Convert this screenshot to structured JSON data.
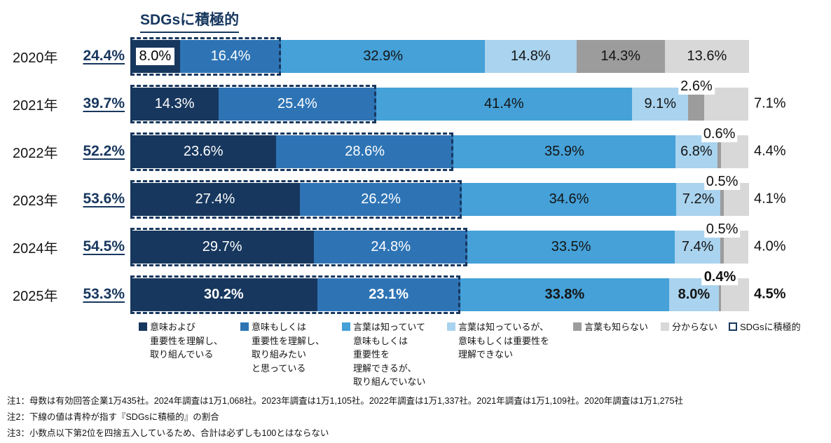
{
  "title": "SDGsに積極的",
  "accent_color": "#17375e",
  "chart_data": {
    "type": "bar",
    "stacked": true,
    "orientation": "horizontal",
    "unit": "%",
    "xlim": [
      0,
      100
    ],
    "categories": [
      "2020年",
      "2021年",
      "2022年",
      "2023年",
      "2024年",
      "2025年"
    ],
    "active_totals": [
      "24.4%",
      "39.7%",
      "52.2%",
      "53.6%",
      "54.5%",
      "53.3%"
    ],
    "annotation_box_label": "SDGsに積極的",
    "annotation_box_color": "#17375e",
    "series": [
      {
        "name": "意味および重要性を理解し、取り組んでいる",
        "color": "#17375e",
        "values": [
          8.0,
          14.3,
          23.6,
          27.4,
          29.7,
          30.2
        ]
      },
      {
        "name": "意味もしくは重要性を理解し、取り組みたいと思っている",
        "color": "#2e74b5",
        "values": [
          16.4,
          25.4,
          28.6,
          26.2,
          24.8,
          23.1
        ]
      },
      {
        "name": "言葉は知っていて意味もしくは重要性を理解できるが、取り組んでいない",
        "color": "#45a1d8",
        "values": [
          32.9,
          41.4,
          35.9,
          34.6,
          33.5,
          33.8
        ]
      },
      {
        "name": "言葉は知っているが、意味もしくは重要性を理解できない",
        "color": "#a9d3ee",
        "values": [
          14.8,
          9.1,
          6.8,
          7.2,
          7.4,
          8.0
        ]
      },
      {
        "name": "言葉も知らない",
        "color": "#9c9c9c",
        "values": [
          14.3,
          2.6,
          0.6,
          0.5,
          0.5,
          0.4
        ]
      },
      {
        "name": "分からない",
        "color": "#d8d8d8",
        "values": [
          13.6,
          7.1,
          4.4,
          4.1,
          4.0,
          4.5
        ]
      }
    ]
  },
  "legend": {
    "items": [
      {
        "swatch": "fill",
        "color": "#17375e",
        "label_lines": [
          "意味および",
          "重要性を理解し、",
          "取り組んでいる"
        ]
      },
      {
        "swatch": "fill",
        "color": "#2e74b5",
        "label_lines": [
          "意味もしくは",
          "重要性を理解し、",
          "取り組みたい",
          "と思っている"
        ]
      },
      {
        "swatch": "fill",
        "color": "#45a1d8",
        "label_lines": [
          "言葉は知っていて",
          "意味もしくは",
          "重要性を",
          "理解できるが、",
          "取り組んでいない"
        ]
      },
      {
        "swatch": "fill",
        "color": "#a9d3ee",
        "label_lines": [
          "言葉は知っているが、",
          "意味もしくは重要性を",
          "理解できない"
        ]
      },
      {
        "swatch": "fill",
        "color": "#9c9c9c",
        "label_lines": [
          "言葉も知らない"
        ]
      },
      {
        "swatch": "fill",
        "color": "#d8d8d8",
        "label_lines": [
          "分からない"
        ]
      },
      {
        "swatch": "dashed",
        "color": "",
        "label_lines": [
          "SDGsに積極的"
        ]
      }
    ]
  },
  "notes": [
    "注1：母数は有効回答企業1万435社。2024年調査は1万1,068社。2023年調査は1万1,105社。2022年調査は1万1,337社。2021年調査は1万1,109社。2020年調査は1万1,275社",
    "注2：下線の値は青枠が指す『SDGsに積極的』の割合",
    "注3：小数点以下第2位を四捨五入しているため、合計は必ずしも100とはならない"
  ]
}
